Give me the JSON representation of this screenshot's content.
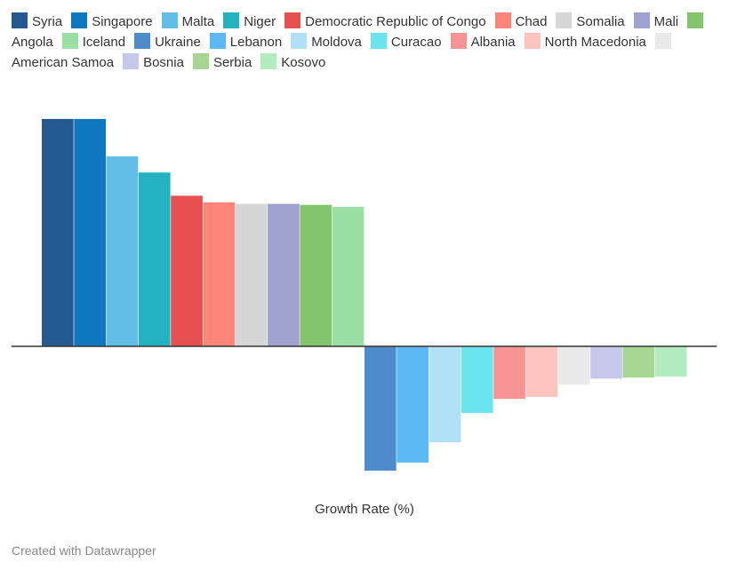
{
  "chart_data": {
    "type": "bar",
    "title": "",
    "xlabel": "Growth Rate (%)",
    "ylabel": "",
    "grid": false,
    "legend_position": "top",
    "categories": [
      "Syria",
      "Singapore",
      "Malta",
      "Niger",
      "Democratic Republic of Congo",
      "Chad",
      "Somalia",
      "Mali",
      "Angola",
      "Iceland",
      "Ukraine",
      "Lebanon",
      "Moldova",
      "Curacao",
      "Albania",
      "North Macedonia",
      "American Samoa",
      "Bosnia",
      "Serbia",
      "Kosovo"
    ],
    "values": [
      4.5,
      4.5,
      3.76,
      3.44,
      2.98,
      2.85,
      2.82,
      2.82,
      2.8,
      2.76,
      -2.46,
      -2.3,
      -1.9,
      -1.32,
      -1.04,
      -1.0,
      -0.76,
      -0.64,
      -0.62,
      -0.6
    ],
    "colors": [
      "#245a91",
      "#0f78c0",
      "#62bee6",
      "#22b2c0",
      "#e65050",
      "#ff8479",
      "#d6d6d6",
      "#9fa1cf",
      "#82c56d",
      "#9ae0a5",
      "#4e8bcb",
      "#5cb9f3",
      "#b1e1f6",
      "#6ae4ee",
      "#f69493",
      "#fec4bf",
      "#e9e9e9",
      "#c6c7ea",
      "#a7d693",
      "#b3ecbe"
    ]
  },
  "footer": {
    "credit": "Created with Datawrapper"
  }
}
